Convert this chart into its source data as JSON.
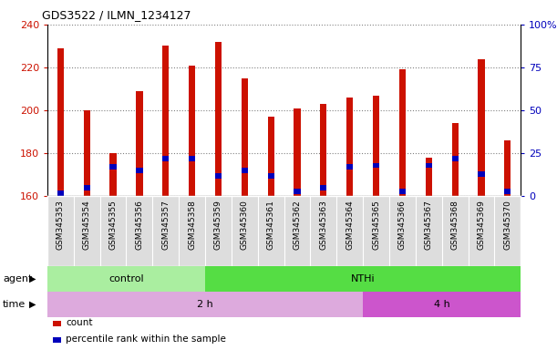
{
  "title": "GDS3522 / ILMN_1234127",
  "samples": [
    "GSM345353",
    "GSM345354",
    "GSM345355",
    "GSM345356",
    "GSM345357",
    "GSM345358",
    "GSM345359",
    "GSM345360",
    "GSM345361",
    "GSM345362",
    "GSM345363",
    "GSM345364",
    "GSM345365",
    "GSM345366",
    "GSM345367",
    "GSM345368",
    "GSM345369",
    "GSM345370"
  ],
  "counts": [
    229,
    200,
    180,
    209,
    230,
    221,
    232,
    215,
    197,
    201,
    203,
    206,
    207,
    219,
    178,
    194,
    224,
    186
  ],
  "percentile_ranks": [
    2,
    5,
    17,
    15,
    22,
    22,
    12,
    15,
    12,
    3,
    5,
    17,
    18,
    3,
    18,
    22,
    13,
    3
  ],
  "ylim_left": [
    160,
    240
  ],
  "ylim_right": [
    0,
    100
  ],
  "yticks_left": [
    160,
    180,
    200,
    220,
    240
  ],
  "yticks_right": [
    0,
    25,
    50,
    75,
    100
  ],
  "bar_color": "#CC1100",
  "blue_color": "#0000BB",
  "agent_groups": [
    {
      "label": "control",
      "start": 0,
      "end": 6,
      "color": "#AAEEA0"
    },
    {
      "label": "NTHi",
      "start": 6,
      "end": 18,
      "color": "#55DD44"
    }
  ],
  "time_groups": [
    {
      "label": "2 h",
      "start": 0,
      "end": 12,
      "color": "#DDAADD"
    },
    {
      "label": "4 h",
      "start": 12,
      "end": 18,
      "color": "#CC55CC"
    }
  ],
  "agent_label": "agent",
  "time_label": "time",
  "legend_count": "count",
  "legend_percentile": "percentile rank within the sample",
  "tick_label_bg": "#DDDDDD",
  "bar_width": 0.25
}
